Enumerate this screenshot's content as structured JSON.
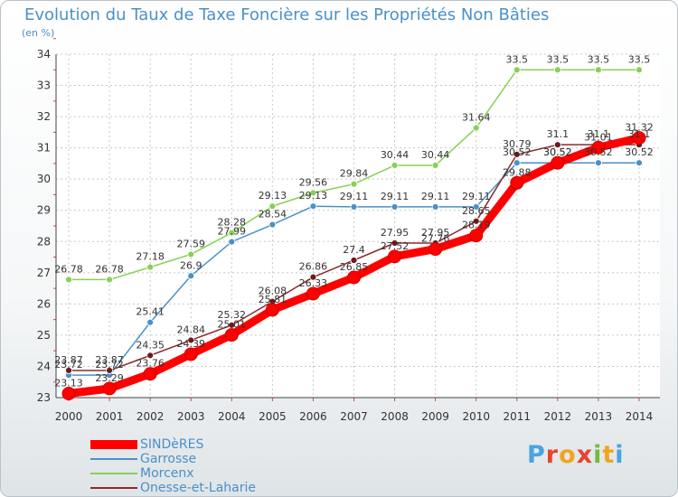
{
  "header": {
    "title": "Evolution du Taux de Taxe Foncière sur les Propriétés Non Bâties",
    "unit": "(en %)"
  },
  "logo": {
    "letters": [
      "P",
      "r",
      "o",
      "x",
      "i",
      "t",
      "i"
    ],
    "colors": [
      "#4aa3df",
      "#e8432e",
      "#f1a51e",
      "#e8432e",
      "#79b83a",
      "#f1a51e",
      "#4aa3df"
    ]
  },
  "chart_data": {
    "type": "line",
    "x": [
      "2000",
      "2001",
      "2002",
      "2003",
      "2004",
      "2005",
      "2006",
      "2007",
      "2008",
      "2009",
      "2010",
      "2011",
      "2012",
      "2013",
      "2014"
    ],
    "ylim": [
      23,
      34
    ],
    "yticks": [
      "23",
      "24",
      "25",
      "26",
      "27",
      "28",
      "29",
      "30",
      "31",
      "32",
      "33",
      "34"
    ],
    "grid": true,
    "legend_position": "bottom-left",
    "series": [
      {
        "name": "SINDèRES",
        "color": "#ff0000",
        "marker_color": "#ff0000",
        "values": [
          23.13,
          23.29,
          23.76,
          24.39,
          25.01,
          25.81,
          26.33,
          26.85,
          27.52,
          27.76,
          28.19,
          29.88,
          30.52,
          31.01,
          31.32
        ],
        "labels": [
          "23.13",
          "23.29",
          "23.76",
          "24.39",
          "25.01",
          "25.81",
          "26.33",
          "26.85",
          "27.52",
          "27.76",
          "28.19",
          "29.88",
          "30.52",
          "31.01",
          "31.32"
        ]
      },
      {
        "name": "Garrosse",
        "color": "#4a90c8",
        "marker_color": "#4a90c8",
        "values": [
          23.72,
          23.72,
          25.41,
          26.9,
          27.99,
          28.54,
          29.13,
          29.11,
          29.11,
          29.11,
          29.11,
          30.52,
          30.52,
          30.52,
          30.52
        ],
        "labels": [
          "23.72",
          "23.72",
          "25.41",
          "26.9",
          "27.99",
          "28.54",
          "29.13",
          "29.11",
          "29.11",
          "29.11",
          "29.11",
          "30.52",
          "30.52",
          "30.52",
          "30.52"
        ]
      },
      {
        "name": "Morcenx",
        "color": "#88d056",
        "marker_color": "#88d056",
        "values": [
          26.78,
          26.78,
          27.18,
          27.59,
          28.28,
          29.13,
          29.56,
          29.84,
          30.44,
          30.44,
          31.64,
          33.5,
          33.5,
          33.5,
          33.5
        ],
        "labels": [
          "26.78",
          "26.78",
          "27.18",
          "27.59",
          "28.28",
          "29.13",
          "29.56",
          "29.84",
          "30.44",
          "30.44",
          "31.64",
          "33.5",
          "33.5",
          "33.5",
          "33.5"
        ]
      },
      {
        "name": "Onesse-et-Laharie",
        "color": "#8b2a2a",
        "marker_color": "#6b1a1a",
        "values": [
          23.87,
          23.87,
          24.35,
          24.84,
          25.32,
          26.08,
          26.86,
          27.4,
          27.95,
          27.95,
          28.65,
          30.79,
          31.1,
          31.1,
          31.1
        ],
        "labels": [
          "23.87",
          "23.87",
          "24.35",
          "24.84",
          "25.32",
          "26.08",
          "26.86",
          "27.4",
          "27.95",
          "27.95",
          "28.65",
          "30.79",
          "31.1",
          "31.1",
          "31.1"
        ]
      }
    ]
  }
}
